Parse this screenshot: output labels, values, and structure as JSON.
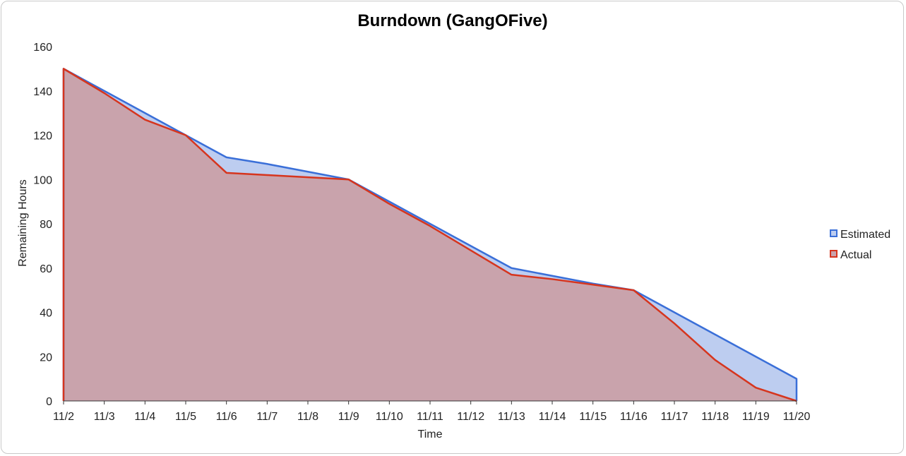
{
  "chart_data": {
    "type": "area",
    "title": "Burndown (GangOFive)",
    "xlabel": "Time",
    "ylabel": "Remaining Hours",
    "ylim": [
      0,
      160
    ],
    "yticks": [
      0,
      20,
      40,
      60,
      80,
      100,
      120,
      140,
      160
    ],
    "categories": [
      "11/2",
      "11/3",
      "11/4",
      "11/5",
      "11/6",
      "11/7",
      "11/8",
      "11/9",
      "11/10",
      "11/11",
      "11/12",
      "11/13",
      "11/14",
      "11/15",
      "11/16",
      "11/17",
      "11/18",
      "11/19",
      "11/20"
    ],
    "series": [
      {
        "name": "Estimated",
        "values": [
          150,
          140,
          130,
          120,
          110,
          107,
          103.5,
          100,
          90,
          80,
          70,
          60,
          56.5,
          53,
          50,
          40,
          30,
          20,
          10
        ],
        "stroke": "#3a6fd8",
        "fill": "#bdcdf0"
      },
      {
        "name": "Actual",
        "values": [
          150,
          139,
          127,
          120,
          103,
          102,
          101,
          100,
          89,
          79,
          68,
          57,
          55,
          52.5,
          50,
          35,
          18.5,
          6,
          0
        ],
        "stroke": "#d6351e",
        "fill": "#c9a3ac"
      }
    ],
    "legend": "right",
    "grid": false
  }
}
